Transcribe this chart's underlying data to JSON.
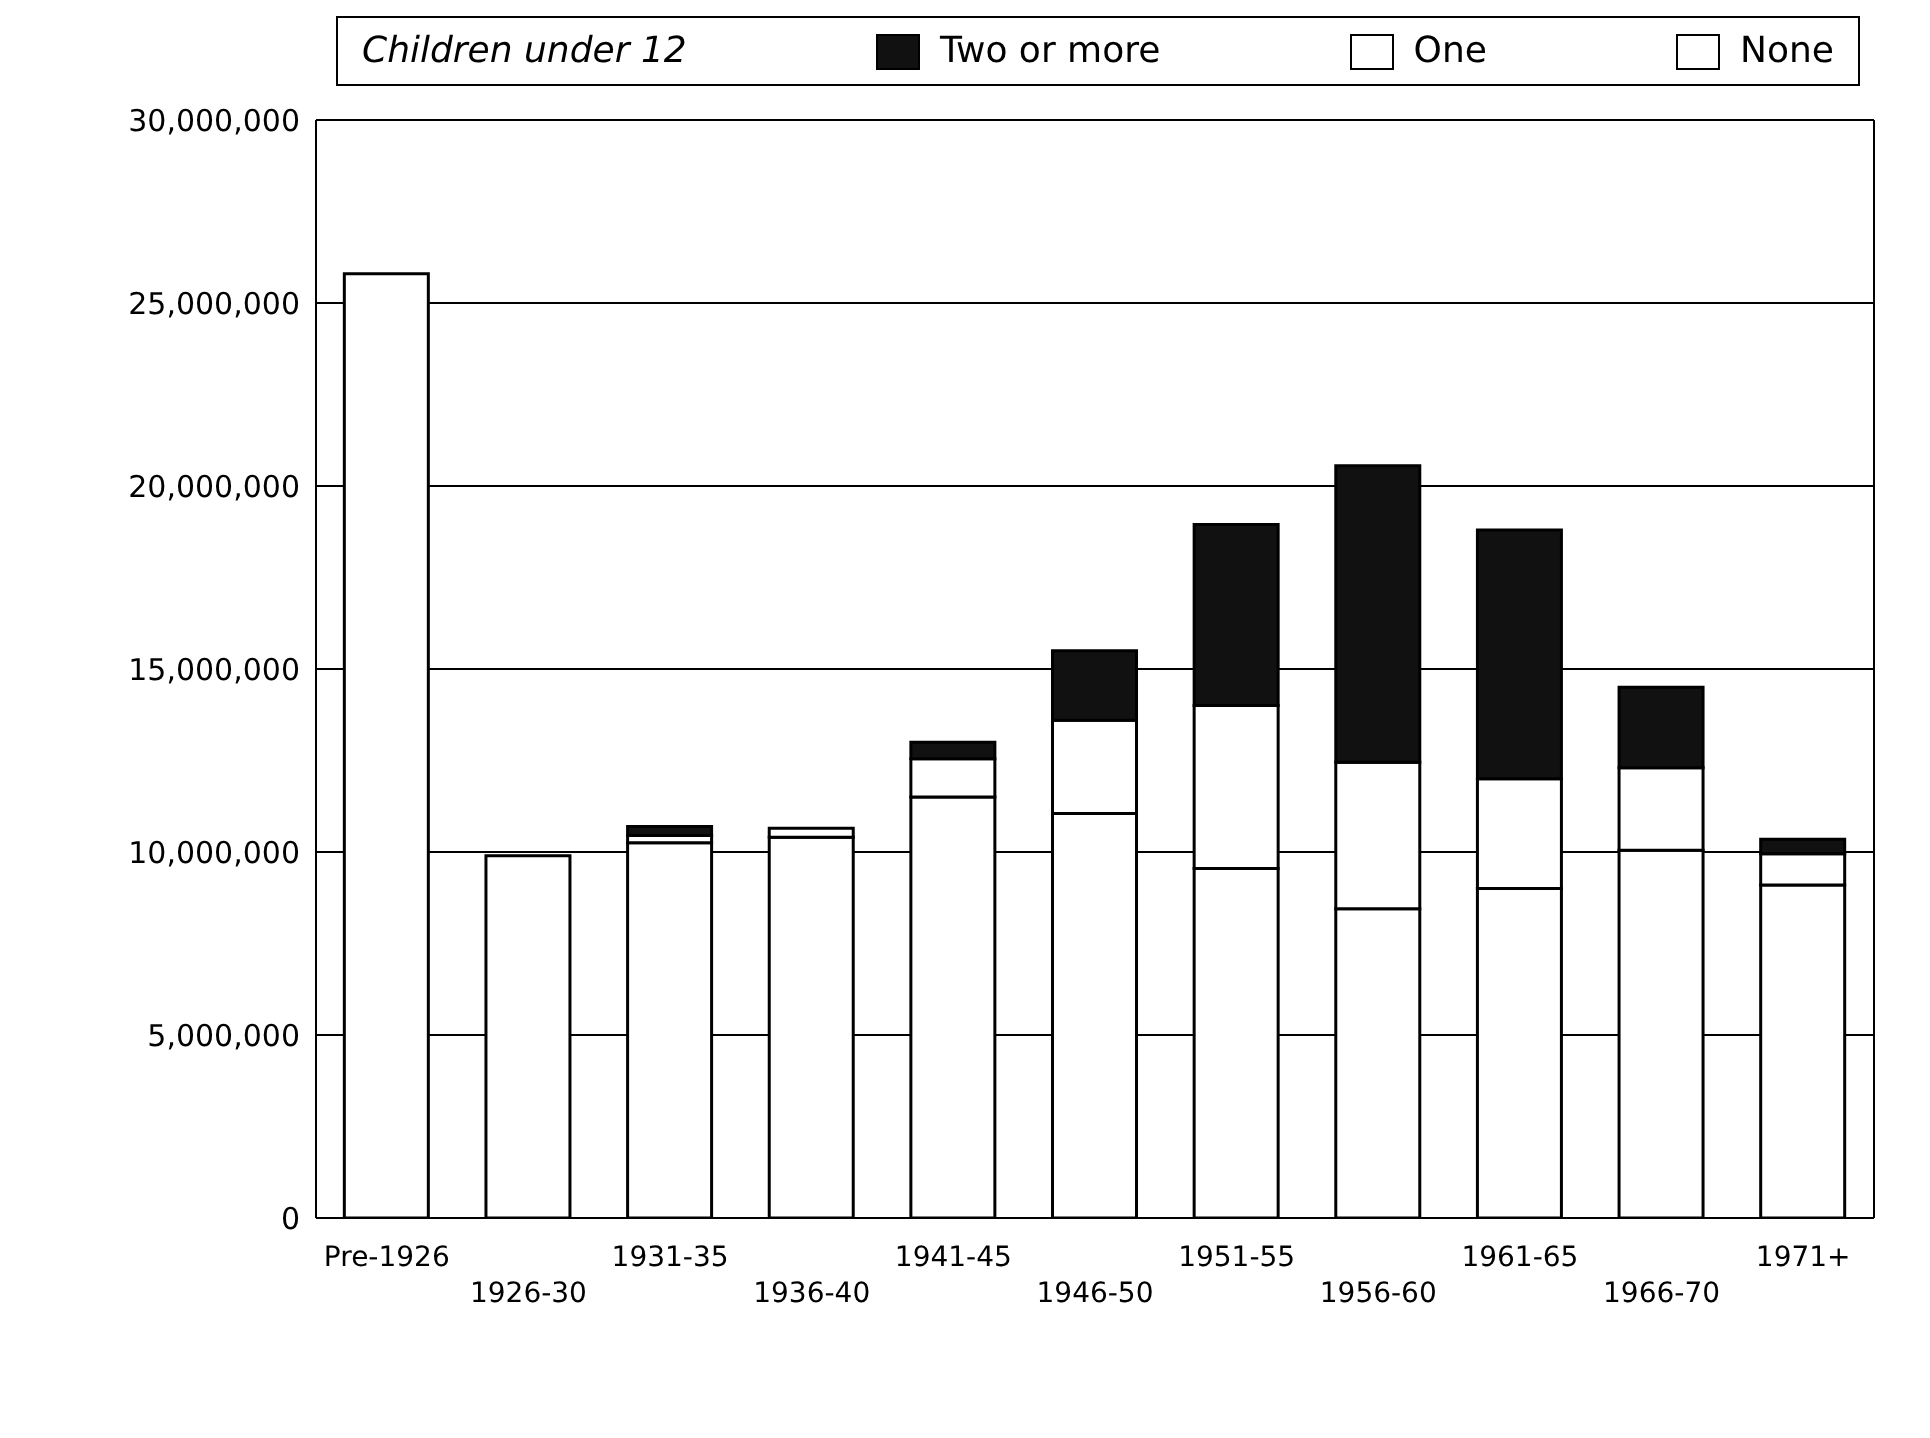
{
  "chart_data": {
    "type": "bar",
    "stacked": true,
    "legend_title": "Children under 12",
    "legend": "top",
    "categories": [
      "Pre-1926",
      "1926-30",
      "1931-35",
      "1936-40",
      "1941-45",
      "1946-50",
      "1951-55",
      "1956-60",
      "1961-65",
      "1966-70",
      "1971+"
    ],
    "series": [
      {
        "name": "None",
        "color": "#ffffff",
        "values": [
          25800000,
          9900000,
          10250000,
          10400000,
          11500000,
          11050000,
          9550000,
          8450000,
          9000000,
          10050000,
          9100000
        ]
      },
      {
        "name": "One",
        "color": "#ffffff",
        "values": [
          0,
          0,
          200000,
          250000,
          1050000,
          2550000,
          4450000,
          4000000,
          3000000,
          2250000,
          850000
        ]
      },
      {
        "name": "Two or more",
        "color": "#111111",
        "values": [
          0,
          0,
          250000,
          0,
          450000,
          1900000,
          4950000,
          8100000,
          6800000,
          2200000,
          400000
        ]
      }
    ],
    "ylim": [
      0,
      30000000
    ],
    "yticks": [
      0,
      {
        "value": 5000000,
        "label": "5,000,000"
      },
      {
        "value": 10000000,
        "label": "10,000,000"
      },
      {
        "value": 15000000,
        "label": "15,000,000"
      },
      {
        "value": 20000000,
        "label": "20,000,000"
      },
      {
        "value": 25000000,
        "label": "25,000,000"
      },
      {
        "value": 30000000,
        "label": "30,000,000"
      }
    ],
    "grid": "y"
  }
}
